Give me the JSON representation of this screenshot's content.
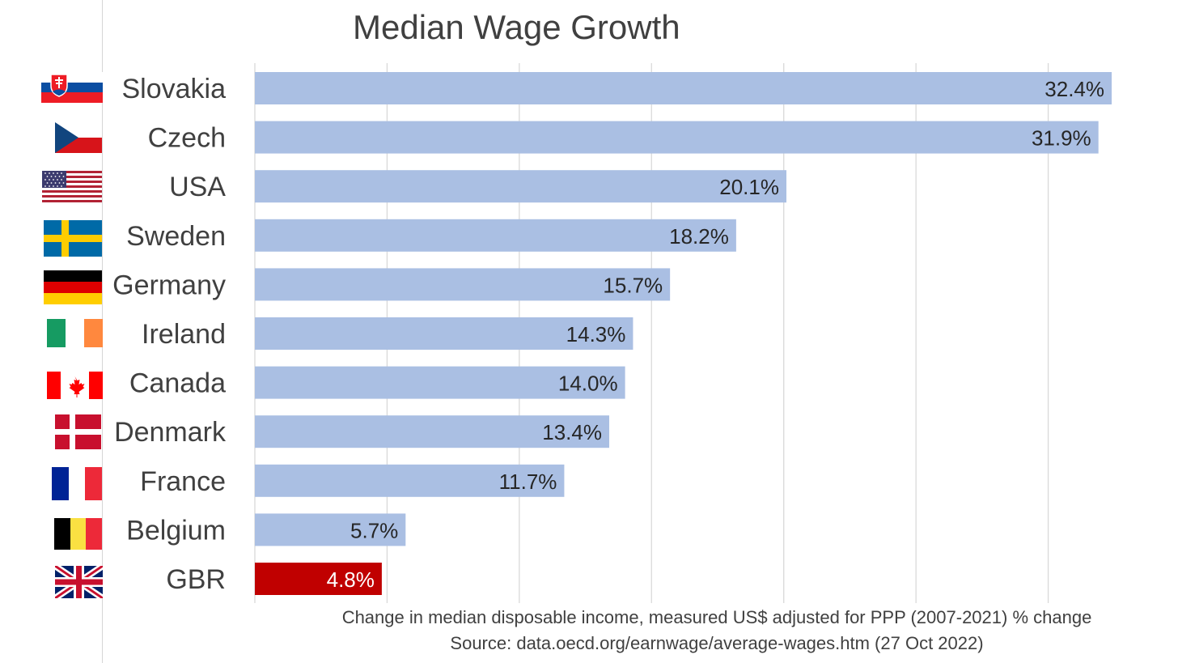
{
  "chart_data": {
    "type": "bar",
    "orientation": "horizontal",
    "title": "Median Wage Growth",
    "categories": [
      "Slovakia",
      "Czech",
      "USA",
      "Sweden",
      "Germany",
      "Ireland",
      "Canada",
      "Denmark",
      "France",
      "Belgium",
      "GBR"
    ],
    "values": [
      32.4,
      31.9,
      20.1,
      18.2,
      15.7,
      14.3,
      14.0,
      13.4,
      11.7,
      5.7,
      4.8
    ],
    "data_labels": [
      "32.4%",
      "31.9%",
      "20.1%",
      "18.2%",
      "15.7%",
      "14.3%",
      "14.0%",
      "13.4%",
      "11.7%",
      "5.7%",
      "4.8%"
    ],
    "highlight_index": 10,
    "xlim": [
      0,
      35
    ],
    "grid": "vertical",
    "legend": "none",
    "colors": {
      "bar": "#aabfe3",
      "highlight": "#c00000",
      "grid": "#d9d9d9",
      "label": "#262626",
      "highlight_label": "#ffffff"
    }
  },
  "captions": {
    "line1": "Change in median disposable income, measured US$ adjusted for PPP (2007-2021) % change",
    "line2": "Source: data.oecd.org/earnwage/average-wages.htm (27 Oct 2022)"
  },
  "flags": [
    "slovakia-flag-icon",
    "czech-flag-icon",
    "usa-flag-icon",
    "sweden-flag-icon",
    "germany-flag-icon",
    "ireland-flag-icon",
    "canada-flag-icon",
    "denmark-flag-icon",
    "france-flag-icon",
    "belgium-flag-icon",
    "uk-flag-icon"
  ]
}
